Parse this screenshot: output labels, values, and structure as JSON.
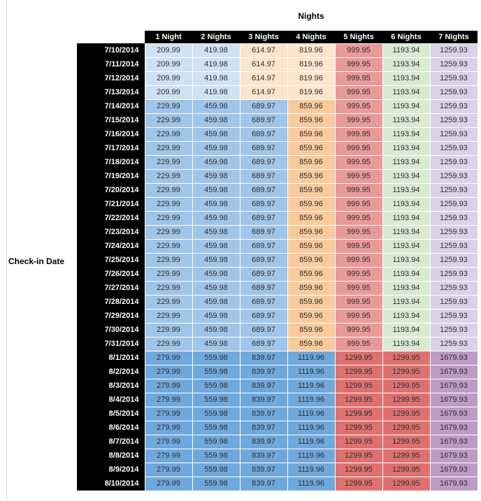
{
  "chart_data": {
    "type": "table",
    "title": "Nights",
    "rows_axis_label": "Check-in Date",
    "columns": [
      "1 Night",
      "2 Nights",
      "3 Nights",
      "4 Nights",
      "5 Nights",
      "6 Nights",
      "7 Nights"
    ],
    "rows": [
      {
        "date": "7/10/2014",
        "band": "b1",
        "values": [
          209.99,
          419.98,
          614.97,
          819.96,
          999.95,
          1193.94,
          1259.93
        ]
      },
      {
        "date": "7/11/2014",
        "band": "b1",
        "values": [
          209.99,
          419.98,
          614.97,
          819.96,
          999.95,
          1193.94,
          1259.93
        ]
      },
      {
        "date": "7/12/2014",
        "band": "b1",
        "values": [
          209.99,
          419.98,
          614.97,
          819.96,
          999.95,
          1193.94,
          1259.93
        ]
      },
      {
        "date": "7/13/2014",
        "band": "b1",
        "values": [
          209.99,
          419.98,
          614.97,
          819.96,
          999.95,
          1193.94,
          1259.93
        ]
      },
      {
        "date": "7/14/2014",
        "band": "b2",
        "values": [
          229.99,
          459.98,
          689.97,
          859.96,
          999.95,
          1193.94,
          1259.93
        ]
      },
      {
        "date": "7/15/2014",
        "band": "b2",
        "values": [
          229.99,
          459.98,
          689.97,
          859.96,
          999.95,
          1193.94,
          1259.93
        ]
      },
      {
        "date": "7/16/2014",
        "band": "b2",
        "values": [
          229.99,
          459.98,
          689.97,
          859.96,
          999.95,
          1193.94,
          1259.93
        ]
      },
      {
        "date": "7/17/2014",
        "band": "b2",
        "values": [
          229.99,
          459.98,
          689.97,
          859.96,
          999.95,
          1193.94,
          1259.93
        ]
      },
      {
        "date": "7/18/2014",
        "band": "b2",
        "values": [
          229.99,
          459.98,
          689.97,
          859.96,
          999.95,
          1193.94,
          1259.93
        ]
      },
      {
        "date": "7/19/2014",
        "band": "b2",
        "values": [
          229.99,
          459.98,
          689.97,
          859.96,
          999.95,
          1193.94,
          1259.93
        ]
      },
      {
        "date": "7/20/2014",
        "band": "b2",
        "values": [
          229.99,
          459.98,
          689.97,
          859.96,
          999.95,
          1193.94,
          1259.93
        ]
      },
      {
        "date": "7/21/2014",
        "band": "b2",
        "values": [
          229.99,
          459.98,
          689.97,
          859.96,
          999.95,
          1193.94,
          1259.93
        ]
      },
      {
        "date": "7/22/2014",
        "band": "b2",
        "values": [
          229.99,
          459.98,
          689.97,
          859.96,
          999.95,
          1193.94,
          1259.93
        ]
      },
      {
        "date": "7/23/2014",
        "band": "b2",
        "values": [
          229.99,
          459.98,
          689.97,
          859.96,
          999.95,
          1193.94,
          1259.93
        ]
      },
      {
        "date": "7/24/2014",
        "band": "b2",
        "values": [
          229.99,
          459.98,
          689.97,
          859.96,
          999.95,
          1193.94,
          1259.93
        ]
      },
      {
        "date": "7/25/2014",
        "band": "b2",
        "values": [
          229.99,
          459.98,
          689.97,
          859.96,
          999.95,
          1193.94,
          1259.93
        ]
      },
      {
        "date": "7/26/2014",
        "band": "b2",
        "values": [
          229.99,
          459.98,
          689.97,
          859.96,
          999.95,
          1193.94,
          1259.93
        ]
      },
      {
        "date": "7/27/2014",
        "band": "b2",
        "values": [
          229.99,
          459.98,
          689.97,
          859.96,
          999.95,
          1193.94,
          1259.93
        ]
      },
      {
        "date": "7/28/2014",
        "band": "b2",
        "values": [
          229.99,
          459.98,
          689.97,
          859.96,
          999.95,
          1193.94,
          1259.93
        ]
      },
      {
        "date": "7/29/2014",
        "band": "b2",
        "values": [
          229.99,
          459.98,
          689.97,
          859.96,
          999.95,
          1193.94,
          1259.93
        ]
      },
      {
        "date": "7/30/2014",
        "band": "b2",
        "values": [
          229.99,
          459.98,
          689.97,
          859.96,
          999.95,
          1193.94,
          1259.93
        ]
      },
      {
        "date": "7/31/2014",
        "band": "b2",
        "values": [
          229.99,
          459.98,
          689.97,
          859.96,
          999.95,
          1193.94,
          1259.93
        ]
      },
      {
        "date": "8/1/2014",
        "band": "b3",
        "values": [
          279.99,
          559.98,
          839.97,
          1119.96,
          1299.95,
          1299.95,
          1679.93
        ]
      },
      {
        "date": "8/2/2014",
        "band": "b3",
        "values": [
          279.99,
          559.98,
          839.97,
          1119.96,
          1299.95,
          1299.95,
          1679.93
        ]
      },
      {
        "date": "8/3/2014",
        "band": "b3",
        "values": [
          279.99,
          559.98,
          839.97,
          1119.96,
          1299.95,
          1299.95,
          1679.93
        ]
      },
      {
        "date": "8/4/2014",
        "band": "b3",
        "values": [
          279.99,
          559.98,
          839.97,
          1119.96,
          1299.95,
          1299.95,
          1679.93
        ]
      },
      {
        "date": "8/5/2014",
        "band": "b3",
        "values": [
          279.99,
          559.98,
          839.97,
          1119.96,
          1299.95,
          1299.95,
          1679.93
        ]
      },
      {
        "date": "8/6/2014",
        "band": "b3",
        "values": [
          279.99,
          559.98,
          839.97,
          1119.96,
          1299.95,
          1299.95,
          1679.93
        ]
      },
      {
        "date": "8/7/2014",
        "band": "b3",
        "values": [
          279.99,
          559.98,
          839.97,
          1119.96,
          1299.95,
          1299.95,
          1679.93
        ]
      },
      {
        "date": "8/8/2014",
        "band": "b3",
        "values": [
          279.99,
          559.98,
          839.97,
          1119.96,
          1299.95,
          1299.95,
          1679.93
        ]
      },
      {
        "date": "8/9/2014",
        "band": "b3",
        "values": [
          279.99,
          559.98,
          839.97,
          1119.96,
          1299.95,
          1299.95,
          1679.93
        ]
      },
      {
        "date": "8/10/2014",
        "band": "b3",
        "values": [
          279.99,
          559.98,
          839.97,
          1119.96,
          1299.95,
          1299.95,
          1679.93
        ]
      }
    ]
  },
  "styles": {
    "header_bg": "#000000",
    "header_text": "#ffffff",
    "cell_text": "#2f2f2f",
    "band_colors": {
      "b1": [
        "#cfe2f3",
        "#cfe2f3",
        "#fce5cd",
        "#fce5cd",
        "#ea9999",
        "#d9ead3",
        "#d9d2e9"
      ],
      "b2": [
        "#9fc5e8",
        "#9fc5e8",
        "#9fc5e8",
        "#f9cb9c",
        "#ea9999",
        "#d9ead3",
        "#d9d2e9"
      ],
      "b3": [
        "#6fa8dc",
        "#6fa8dc",
        "#6fa8dc",
        "#6fa8dc",
        "#df7070",
        "#df7070",
        "#bd9bc5"
      ]
    }
  }
}
